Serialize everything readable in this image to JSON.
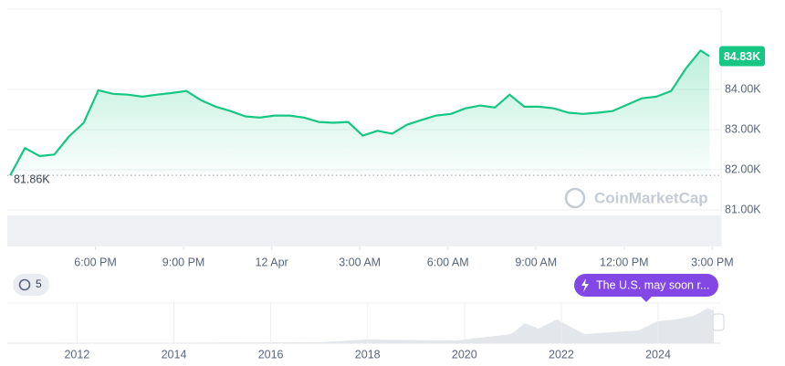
{
  "chart_data": {
    "type": "line",
    "x": [
      -8.9,
      -8.4,
      -7.9,
      -7.4,
      -6.9,
      -6.4,
      -5.9,
      -5.4,
      -4.9,
      -4.4,
      -3.9,
      -3.4,
      -2.9,
      -2.4,
      -1.9,
      -1.4,
      -0.9,
      -0.4,
      0.1,
      0.6,
      1.1,
      1.6,
      2.1,
      2.6,
      3.1,
      3.6,
      4.1,
      4.6,
      5.1,
      5.6,
      6.1,
      6.6,
      7.1,
      7.6,
      8.1,
      8.6,
      9.1,
      9.6,
      10.1,
      10.6,
      11.1,
      11.6,
      12.1,
      12.6,
      13.1,
      13.6,
      14.1,
      14.6,
      14.9
    ],
    "series": [
      {
        "color": "#16c784",
        "values": [
          81860,
          82540,
          82340,
          82380,
          82830,
          83170,
          83980,
          83890,
          83870,
          83820,
          83870,
          83910,
          83960,
          83730,
          83570,
          83460,
          83330,
          83300,
          83350,
          83350,
          83300,
          83190,
          83170,
          83190,
          82850,
          82970,
          82900,
          83120,
          83240,
          83350,
          83390,
          83530,
          83600,
          83550,
          83870,
          83570,
          83570,
          83530,
          83420,
          83390,
          83420,
          83460,
          83620,
          83780,
          83820,
          83960,
          84520,
          84970,
          84830
        ]
      }
    ],
    "xlim": [
      -9.0,
      15.3
    ],
    "xticks": [
      {
        "value": -6,
        "label": "6:00 PM"
      },
      {
        "value": -3,
        "label": "9:00 PM"
      },
      {
        "value": 0,
        "label": "12 Apr"
      },
      {
        "value": 3,
        "label": "3:00 AM"
      },
      {
        "value": 6,
        "label": "6:00 AM"
      },
      {
        "value": 9,
        "label": "9:00 AM"
      },
      {
        "value": 12,
        "label": "12:00 PM"
      },
      {
        "value": 15,
        "label": "3:00 PM"
      }
    ],
    "ylim": [
      80090,
      86000
    ],
    "yticks": [
      {
        "value": 81000,
        "label": "81.00K"
      },
      {
        "value": 82000,
        "label": "82.00K"
      },
      {
        "value": 83000,
        "label": "83.00K"
      },
      {
        "value": 84000,
        "label": "84.00K"
      }
    ],
    "grid": true,
    "price_label": {
      "value": 84830,
      "label": "84.83K"
    },
    "open_label": {
      "value": 81860,
      "label": "81.86K"
    },
    "navigator": {
      "xlim": [
        2010.56,
        2025.3
      ],
      "xticks": [
        2012,
        2014,
        2016,
        2018,
        2020,
        2022,
        2024
      ]
    },
    "annotations": {
      "watermark": "CoinMarketCap",
      "badge": "5",
      "news": "The U.S. may soon r..."
    }
  }
}
